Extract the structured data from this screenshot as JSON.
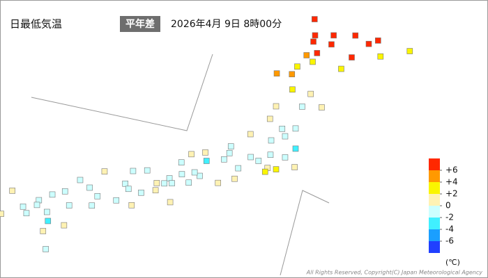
{
  "header": {
    "title": "日最低気温",
    "badge": "平年差",
    "datetime": "2026年4月 9日 8時00分"
  },
  "legend": {
    "colors": [
      "#ff2800",
      "#ff9900",
      "#faf500",
      "#fff2b3",
      "#ccffff",
      "#40f0ff",
      "#1a9fff",
      "#2040ff"
    ],
    "ticks": [
      {
        "value": 6,
        "label": "+6"
      },
      {
        "value": 4,
        "label": "+4"
      },
      {
        "value": 2,
        "label": "+2"
      },
      0,
      -2,
      -4,
      -6
    ],
    "unit": "(℃)"
  },
  "stations": [
    {
      "lon": 141.68,
      "lat": 45.42,
      "value": 7.1
    },
    {
      "lon": 142.37,
      "lat": 43.77,
      "value": 6.5
    },
    {
      "lon": 141.35,
      "lat": 43.06,
      "value": 5.2
    },
    {
      "lon": 143.2,
      "lat": 42.92,
      "value": 6.8
    },
    {
      "lon": 144.38,
      "lat": 42.98,
      "value": 3.1
    },
    {
      "lon": 144.28,
      "lat": 44.02,
      "value": 6.3
    },
    {
      "lon": 145.58,
      "lat": 43.33,
      "value": 2.5
    },
    {
      "lon": 140.75,
      "lat": 41.82,
      "value": 4.5
    },
    {
      "lon": 140.97,
      "lat": 42.32,
      "value": 3.6
    },
    {
      "lon": 141.63,
      "lat": 43.95,
      "value": 6.9
    },
    {
      "lon": 142.46,
      "lat": 44.36,
      "value": 7.5
    },
    {
      "lon": 143.9,
      "lat": 43.8,
      "value": 6.6
    },
    {
      "lon": 141.6,
      "lat": 42.63,
      "value": 2.8
    },
    {
      "lon": 140.13,
      "lat": 41.87,
      "value": 4.2
    },
    {
      "lon": 142.77,
      "lat": 42.17,
      "value": 2.1
    },
    {
      "lon": 143.35,
      "lat": 44.35,
      "value": 6.2
    },
    {
      "lon": 141.7,
      "lat": 44.36,
      "value": 6.4
    },
    {
      "lon": 141.78,
      "lat": 43.2,
      "value": 6.1
    },
    {
      "lon": 140.77,
      "lat": 40.82,
      "value": 2.3
    },
    {
      "lon": 141.52,
      "lat": 40.53,
      "value": 1.5
    },
    {
      "lon": 140.1,
      "lat": 39.72,
      "value": 1.2
    },
    {
      "lon": 141.17,
      "lat": 39.7,
      "value": -0.8
    },
    {
      "lon": 141.97,
      "lat": 39.65,
      "value": 0.4
    },
    {
      "lon": 140.9,
      "lat": 38.27,
      "value": -1.5
    },
    {
      "lon": 140.35,
      "lat": 38.25,
      "value": -0.6
    },
    {
      "lon": 140.47,
      "lat": 37.76,
      "value": -1.3
    },
    {
      "lon": 139.85,
      "lat": 38.9,
      "value": 0.3
    },
    {
      "lon": 140.9,
      "lat": 36.95,
      "value": -2.5
    },
    {
      "lon": 139.9,
      "lat": 37.49,
      "value": -1.0
    },
    {
      "lon": 140.47,
      "lat": 36.38,
      "value": -1.8
    },
    {
      "lon": 139.87,
      "lat": 36.55,
      "value": -1.4
    },
    {
      "lon": 139.06,
      "lat": 36.4,
      "value": -0.9
    },
    {
      "lon": 139.38,
      "lat": 36.15,
      "value": -1.6
    },
    {
      "lon": 139.75,
      "lat": 35.69,
      "value": 1.8
    },
    {
      "lon": 140.1,
      "lat": 35.6,
      "value": 2.2
    },
    {
      "lon": 139.65,
      "lat": 35.44,
      "value": 2.6
    },
    {
      "lon": 140.86,
      "lat": 35.74,
      "value": 0.8
    },
    {
      "lon": 139.05,
      "lat": 37.9,
      "value": 0.6
    },
    {
      "lon": 138.25,
      "lat": 37.1,
      "value": -0.4
    },
    {
      "lon": 137.2,
      "lat": 36.7,
      "value": 1.1
    },
    {
      "lon": 136.63,
      "lat": 36.59,
      "value": 0.5
    },
    {
      "lon": 136.22,
      "lat": 36.05,
      "value": -0.3
    },
    {
      "lon": 138.19,
      "lat": 36.66,
      "value": -1.2
    },
    {
      "lon": 137.97,
      "lat": 36.25,
      "value": -1.7
    },
    {
      "lon": 138.55,
      "lat": 35.67,
      "value": -1.1
    },
    {
      "lon": 138.4,
      "lat": 34.98,
      "value": 1.4
    },
    {
      "lon": 137.72,
      "lat": 34.71,
      "value": 0.9
    },
    {
      "lon": 136.97,
      "lat": 35.17,
      "value": -0.7
    },
    {
      "lon": 136.76,
      "lat": 35.4,
      "value": -0.5
    },
    {
      "lon": 137.25,
      "lat": 36.15,
      "value": -2.1
    },
    {
      "lon": 136.52,
      "lat": 34.73,
      "value": -0.6
    },
    {
      "lon": 136.24,
      "lat": 35.28,
      "value": -1.0
    },
    {
      "lon": 135.73,
      "lat": 35.01,
      "value": -1.3
    },
    {
      "lon": 135.52,
      "lat": 34.68,
      "value": -0.4
    },
    {
      "lon": 135.21,
      "lat": 34.7,
      "value": 0.2
    },
    {
      "lon": 135.83,
      "lat": 34.69,
      "value": -1.5
    },
    {
      "lon": 135.16,
      "lat": 34.23,
      "value": 0.4
    },
    {
      "lon": 135.76,
      "lat": 33.45,
      "value": 1.9
    },
    {
      "lon": 134.82,
      "lat": 35.53,
      "value": -0.8
    },
    {
      "lon": 134.24,
      "lat": 35.49,
      "value": -0.2
    },
    {
      "lon": 133.07,
      "lat": 35.46,
      "value": 0.3
    },
    {
      "lon": 133.92,
      "lat": 34.66,
      "value": -1.1
    },
    {
      "lon": 132.46,
      "lat": 34.4,
      "value": -0.6
    },
    {
      "lon": 132.07,
      "lat": 34.9,
      "value": -0.9
    },
    {
      "lon": 130.93,
      "lat": 33.95,
      "value": -1.4
    },
    {
      "lon": 131.45,
      "lat": 34.16,
      "value": -1.8
    },
    {
      "lon": 134.05,
      "lat": 34.32,
      "value": -1.2
    },
    {
      "lon": 134.57,
      "lat": 34.07,
      "value": -0.3
    },
    {
      "lon": 132.78,
      "lat": 33.84,
      "value": -1.0
    },
    {
      "lon": 133.55,
      "lat": 33.57,
      "value": -1.6
    },
    {
      "lon": 132.55,
      "lat": 33.23,
      "value": -0.7
    },
    {
      "lon": 134.18,
      "lat": 33.25,
      "value": 0.6
    },
    {
      "lon": 130.38,
      "lat": 33.58,
      "value": -1.3
    },
    {
      "lon": 130.3,
      "lat": 33.27,
      "value": -1.7
    },
    {
      "lon": 129.87,
      "lat": 32.73,
      "value": -0.4
    },
    {
      "lon": 130.71,
      "lat": 32.81,
      "value": -1.9
    },
    {
      "lon": 131.62,
      "lat": 33.24,
      "value": -0.9
    },
    {
      "lon": 131.41,
      "lat": 31.94,
      "value": 0.5
    },
    {
      "lon": 130.55,
      "lat": 31.56,
      "value": 1.2
    },
    {
      "lon": 129.73,
      "lat": 33.16,
      "value": -0.6
    },
    {
      "lon": 130.75,
      "lat": 32.22,
      "value": -2.3
    },
    {
      "lon": 129.29,
      "lat": 34.2,
      "value": 0.2
    },
    {
      "lon": 128.83,
      "lat": 32.69,
      "value": 0.7
    },
    {
      "lon": 130.66,
      "lat": 30.38,
      "value": -1.5
    }
  ],
  "copyright": "All Rights Reserved, Copyright(C) Japan Meteorological Agency"
}
